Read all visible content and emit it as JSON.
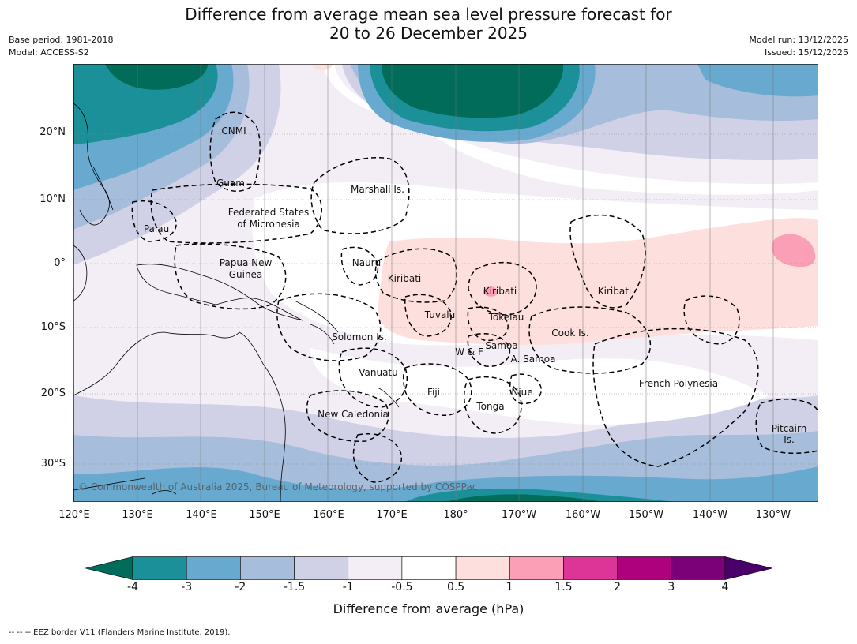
{
  "title_line1": "Difference from average mean sea level pressure forecast for",
  "title_line2": "20 to 26 December 2025",
  "meta": {
    "base_period": "Base period: 1981-2018",
    "model": "Model: ACCESS-S2",
    "model_run": "Model run: 13/12/2025",
    "issued": "Issued: 15/12/2025"
  },
  "copyright": "© Commonwealth of Australia 2025, Bureau of Meteorology, supported by COSPPac",
  "lat_labels": [
    "20°N",
    "10°N",
    "0°",
    "10°S",
    "20°S",
    "30°S"
  ],
  "lon_labels": [
    "120°E",
    "130°E",
    "140°E",
    "150°E",
    "160°E",
    "170°E",
    "180°",
    "170°W",
    "160°W",
    "150°W",
    "140°W",
    "130°W"
  ],
  "regions": {
    "cnmi": "CNMI",
    "guam": "Guam",
    "marshall": "Marshall Is.",
    "fsm1": "Federated States",
    "fsm2": "of Micronesia",
    "palau": "Palau",
    "png1": "Papua New",
    "png2": "Guinea",
    "nauru": "Nauru",
    "kiribati_w": "Kiribati",
    "kiribati_c": "Kiribati",
    "kiribati_e": "Kiribati",
    "tuvalu": "Tuvalu",
    "tokelau": "Tokelau",
    "cook": "Cook Is.",
    "solomon": "Solomon Is.",
    "samoa": "Samoa",
    "wf": "W & F",
    "asamoa": "A. Samoa",
    "vanuatu": "Vanuatu",
    "fiji": "Fiji",
    "niue": "Niue",
    "tonga": "Tonga",
    "frpoly": "French Polynesia",
    "newcal": "New Caledonia",
    "pitcairn1": "Pitcairn",
    "pitcairn2": "Is."
  },
  "colorbar": {
    "label": "Difference from average (hPa)",
    "ticks": [
      "-4",
      "-3",
      "-2",
      "-1.5",
      "-1",
      "-0.5",
      "0.5",
      "1",
      "1.5",
      "2",
      "3",
      "4"
    ],
    "colors": [
      "#1b9098",
      "#67a9cf",
      "#a6bddb",
      "#d0d1e6",
      "#f3eef6",
      "#ffffff",
      "#fde0dd",
      "#fa9fb5",
      "#dd3497",
      "#ae017e",
      "#7a0177"
    ],
    "under_color": "#016c59",
    "over_color": "#49006a"
  },
  "footer": "--  --  -- EEZ border V11 (Flanders Marine Institute, 2019)."
}
